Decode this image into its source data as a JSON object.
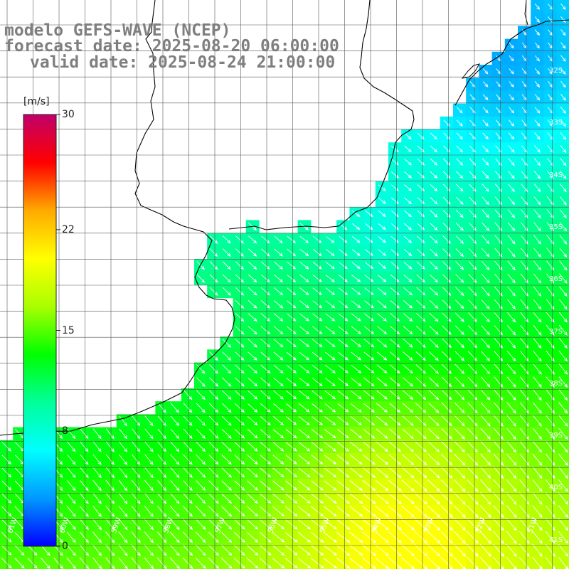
{
  "title": {
    "model": "modelo GEFS-WAVE (NCEP)",
    "forecast": "forecast date: 2025-08-20 06:00:00",
    "valid": "valid date: 2025-08-24 21:00:00"
  },
  "colorbar": {
    "unit": "[m/s]",
    "min": 0,
    "max": 30,
    "ticks": [
      {
        "value": 0,
        "label": "0"
      },
      {
        "value": 8,
        "label": "8"
      },
      {
        "value": 15,
        "label": "15"
      },
      {
        "value": 22,
        "label": "22"
      },
      {
        "value": 30,
        "label": "30"
      }
    ],
    "colors": [
      "#0000ff",
      "#0099ff",
      "#00ffff",
      "#00ff99",
      "#00ff00",
      "#aaff00",
      "#ffff00",
      "#ffaa00",
      "#ff0000",
      "#c0006a"
    ]
  },
  "map": {
    "lon_range": [
      -61,
      -50
    ],
    "lat_range": [
      -41,
      -31
    ],
    "lat_labels": [
      "32S",
      "33S",
      "34S",
      "35S",
      "36S",
      "37S",
      "38S",
      "39S",
      "40S",
      "41S"
    ],
    "lon_labels": [
      "61W",
      "60W",
      "59W",
      "58W",
      "57W",
      "56W",
      "55W",
      "54W",
      "53W",
      "52W",
      "51W"
    ],
    "grid_step_deg": 0.5,
    "wind_direction": "northwest to southeast"
  }
}
